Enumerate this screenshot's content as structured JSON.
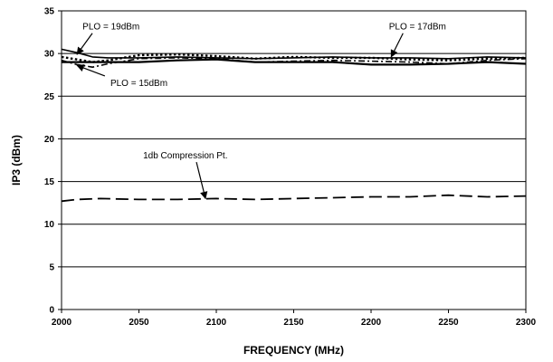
{
  "chart_data": {
    "type": "line",
    "title": "",
    "xlabel": "FREQUENCY (MHz)",
    "ylabel": "IP3 (dBm)",
    "xlim": [
      2000,
      2300
    ],
    "ylim": [
      0,
      35
    ],
    "x_ticks": [
      "2000",
      "2050",
      "2100",
      "2150",
      "2200",
      "2250",
      "2300"
    ],
    "y_ticks": [
      "0",
      "5",
      "10",
      "15",
      "20",
      "25",
      "30",
      "35"
    ],
    "grid": "horizontal",
    "legend": "none",
    "series": [
      {
        "name": "PLO = 19dBm",
        "style": "solid",
        "color": "#000000",
        "x": [
          2000,
          2010,
          2020,
          2030,
          2050,
          2075,
          2100,
          2125,
          2150,
          2175,
          2200,
          2225,
          2250,
          2275,
          2300
        ],
        "y": [
          30.5,
          30.1,
          29.6,
          29.5,
          29.5,
          29.6,
          29.5,
          29.4,
          29.5,
          29.6,
          29.5,
          29.5,
          29.4,
          29.6,
          29.5
        ]
      },
      {
        "name": "PLO = 17dBm",
        "style": "dotted",
        "color": "#000000",
        "x": [
          2000,
          2010,
          2020,
          2030,
          2050,
          2075,
          2100,
          2125,
          2150,
          2175,
          2200,
          2225,
          2250,
          2275,
          2300
        ],
        "y": [
          29.6,
          29.3,
          29.0,
          29.2,
          29.8,
          29.9,
          29.7,
          29.4,
          29.6,
          29.5,
          29.5,
          29.3,
          29.2,
          29.4,
          29.5
        ]
      },
      {
        "name": "PLO = 15dBm",
        "style": "dash-dot",
        "color": "#000000",
        "x": [
          2000,
          2010,
          2020,
          2030,
          2050,
          2075,
          2100,
          2125,
          2150,
          2175,
          2200,
          2225,
          2250,
          2275,
          2300
        ],
        "y": [
          29.2,
          28.7,
          28.4,
          28.8,
          29.4,
          29.5,
          29.4,
          29.0,
          29.1,
          29.2,
          29.1,
          29.0,
          28.8,
          29.2,
          29.4
        ]
      },
      {
        "name": "",
        "style": "solid-thick",
        "color": "#000000",
        "x": [
          2000,
          2025,
          2050,
          2075,
          2100,
          2125,
          2150,
          2175,
          2200,
          2225,
          2250,
          2275,
          2300
        ],
        "y": [
          29.0,
          29.0,
          29.0,
          29.2,
          29.3,
          29.0,
          29.0,
          29.0,
          28.7,
          28.7,
          28.8,
          29.0,
          28.8
        ]
      },
      {
        "name": "1db Compression Pt.",
        "style": "long-dash",
        "color": "#000000",
        "x": [
          2000,
          2010,
          2025,
          2050,
          2075,
          2100,
          2125,
          2150,
          2175,
          2200,
          2225,
          2250,
          2275,
          2300
        ],
        "y": [
          12.7,
          12.9,
          13.0,
          12.9,
          12.9,
          13.0,
          12.9,
          13.0,
          13.1,
          13.2,
          13.2,
          13.4,
          13.2,
          13.3
        ]
      }
    ],
    "annotations": [
      {
        "text": "PLO = 19dBm",
        "x": 2032,
        "y": 32.8,
        "arrow_to": [
          2010,
          29.9
        ]
      },
      {
        "text": "PLO = 17dBm",
        "x": 2230,
        "y": 32.8,
        "arrow_to": [
          2213,
          29.6
        ]
      },
      {
        "text": "PLO = 15dBm",
        "x": 2050,
        "y": 26.2,
        "arrow_to": [
          2010,
          28.6
        ]
      },
      {
        "text": "1db Compression Pt.",
        "x": 2080,
        "y": 17.7,
        "arrow_to": [
          2093,
          13.0
        ]
      }
    ]
  }
}
